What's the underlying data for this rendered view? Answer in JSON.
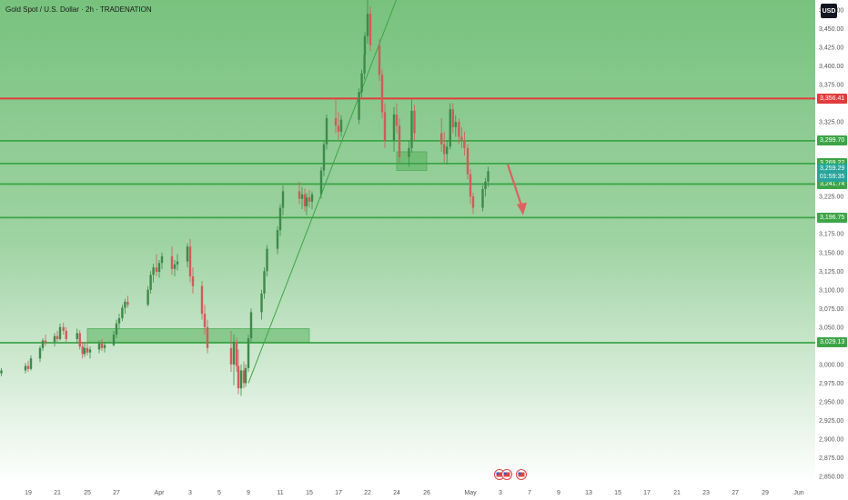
{
  "header": {
    "title": "Gold Spot / U.S. Dollar · 2h · TRADENATION",
    "currency": "USD"
  },
  "colors": {
    "background_top": "#78c27e",
    "background_bottom": "#ffffff",
    "resistance": "#e23b3b",
    "support": "#3da547",
    "candle_up": "#3d8a4a",
    "candle_down": "#d35a5a",
    "current_tag": "#26a69a",
    "arrow": "#e06060"
  },
  "chart_data": {
    "type": "candlestick",
    "symbol": "Gold Spot / U.S. Dollar",
    "interval": "2h",
    "broker": "TRADENATION",
    "ylim": [
      2850,
      3475
    ],
    "x_ticks": [
      "19",
      "21",
      "25",
      "27",
      "Apr",
      "3",
      "5",
      "9",
      "11",
      "15",
      "17",
      "22",
      "24",
      "26",
      "May",
      "3",
      "7",
      "9",
      "13",
      "15",
      "17",
      "21",
      "23",
      "27",
      "29",
      "Jun"
    ],
    "y_ticks": [
      "3,475.00",
      "3,450.00",
      "3,425.00",
      "3,400.00",
      "3,375.00",
      "3,325.00",
      "3,225.00",
      "3,175.00",
      "3,150.00",
      "3,125.00",
      "3,100.00",
      "3,075.00",
      "3,050.00",
      "3,000.00",
      "2,975.00",
      "2,950.00",
      "2,925.00",
      "2,900.00",
      "2,875.00",
      "2,850.00"
    ],
    "y_tick_values": [
      3475,
      3450,
      3425,
      3400,
      3375,
      3325,
      3225,
      3175,
      3150,
      3125,
      3100,
      3075,
      3050,
      3000,
      2975,
      2950,
      2925,
      2900,
      2875,
      2850
    ],
    "horizontal_levels": [
      {
        "label": "3,356.41",
        "value": 3356.41,
        "color": "#e23b3b",
        "kind": "resistance"
      },
      {
        "label": "3,299.70",
        "value": 3299.7,
        "color": "#3da547",
        "kind": "support"
      },
      {
        "label": "3,269.22",
        "value": 3269.22,
        "color": "#3da547",
        "kind": "support"
      },
      {
        "label": "3,241.74",
        "value": 3241.74,
        "color": "#3da547",
        "kind": "support"
      },
      {
        "label": "3,196.75",
        "value": 3196.75,
        "color": "#3da547",
        "kind": "support"
      },
      {
        "label": "3,029.13",
        "value": 3029.13,
        "color": "#3da547",
        "kind": "support"
      }
    ],
    "current_price": {
      "price": "3,259.29",
      "countdown": "01:59:35",
      "value": 3259.29
    },
    "zones": [
      {
        "date_from": "Mar 25",
        "date_to": "Apr 15",
        "low": 3030,
        "high": 3048
      },
      {
        "date_from": "Apr 24",
        "date_to": "Apr 26",
        "low": 3260,
        "high": 3285
      }
    ],
    "trendline": {
      "from_date": "Apr 9",
      "from_price": 2975,
      "to_date": "Apr 24",
      "to_price": 3490
    },
    "projection_arrow": {
      "from_date": "May 4",
      "from_price": 3268,
      "to_date": "May 6",
      "to_price": 3200
    },
    "events": [
      "us-flag",
      "us-flag",
      "us-flag"
    ],
    "candles": [
      {
        "date": "Mar 18",
        "o": 2985,
        "h": 2990,
        "l": 2980,
        "c": 2988
      },
      {
        "date": "Mar 18",
        "o": 2988,
        "h": 2995,
        "l": 2984,
        "c": 2992
      },
      {
        "date": "Mar 19",
        "o": 2992,
        "h": 3002,
        "l": 2988,
        "c": 2998
      },
      {
        "date": "Mar 19",
        "o": 2998,
        "h": 3005,
        "l": 2990,
        "c": 2994
      },
      {
        "date": "Mar 19",
        "o": 2994,
        "h": 3012,
        "l": 2992,
        "c": 3008
      },
      {
        "date": "Mar 20",
        "o": 3008,
        "h": 3025,
        "l": 3003,
        "c": 3022
      },
      {
        "date": "Mar 20",
        "o": 3022,
        "h": 3035,
        "l": 3018,
        "c": 3032
      },
      {
        "date": "Mar 20",
        "o": 3032,
        "h": 3040,
        "l": 3025,
        "c": 3030
      },
      {
        "date": "Mar 21",
        "o": 3030,
        "h": 3042,
        "l": 3024,
        "c": 3038
      },
      {
        "date": "Mar 21",
        "o": 3038,
        "h": 3045,
        "l": 3030,
        "c": 3034
      },
      {
        "date": "Mar 21",
        "o": 3034,
        "h": 3055,
        "l": 3032,
        "c": 3050
      },
      {
        "date": "Mar 22",
        "o": 3050,
        "h": 3056,
        "l": 3040,
        "c": 3045
      },
      {
        "date": "Mar 22",
        "o": 3045,
        "h": 3050,
        "l": 3030,
        "c": 3034
      },
      {
        "date": "Mar 24",
        "o": 3034,
        "h": 3048,
        "l": 3028,
        "c": 3042
      },
      {
        "date": "Mar 24",
        "o": 3042,
        "h": 3046,
        "l": 3020,
        "c": 3024
      },
      {
        "date": "Mar 24",
        "o": 3024,
        "h": 3030,
        "l": 3008,
        "c": 3014
      },
      {
        "date": "Mar 25",
        "o": 3014,
        "h": 3028,
        "l": 3010,
        "c": 3022
      },
      {
        "date": "Mar 25",
        "o": 3022,
        "h": 3030,
        "l": 3012,
        "c": 3016
      },
      {
        "date": "Mar 25",
        "o": 3016,
        "h": 3024,
        "l": 3008,
        "c": 3020
      },
      {
        "date": "Mar 26",
        "o": 3020,
        "h": 3032,
        "l": 3015,
        "c": 3028
      },
      {
        "date": "Mar 26",
        "o": 3028,
        "h": 3034,
        "l": 3018,
        "c": 3022
      },
      {
        "date": "Mar 26",
        "o": 3022,
        "h": 3030,
        "l": 3016,
        "c": 3026
      },
      {
        "date": "Mar 27",
        "o": 3026,
        "h": 3045,
        "l": 3024,
        "c": 3040
      },
      {
        "date": "Mar 27",
        "o": 3040,
        "h": 3060,
        "l": 3035,
        "c": 3055
      },
      {
        "date": "Mar 27",
        "o": 3055,
        "h": 3068,
        "l": 3048,
        "c": 3062
      },
      {
        "date": "Mar 28",
        "o": 3062,
        "h": 3080,
        "l": 3058,
        "c": 3076
      },
      {
        "date": "Mar 28",
        "o": 3076,
        "h": 3088,
        "l": 3068,
        "c": 3084
      },
      {
        "date": "Mar 28",
        "o": 3084,
        "h": 3092,
        "l": 3076,
        "c": 3080
      },
      {
        "date": "Mar 31",
        "o": 3080,
        "h": 3105,
        "l": 3078,
        "c": 3100
      },
      {
        "date": "Mar 31",
        "o": 3100,
        "h": 3125,
        "l": 3095,
        "c": 3120
      },
      {
        "date": "Mar 31",
        "o": 3120,
        "h": 3135,
        "l": 3110,
        "c": 3130
      },
      {
        "date": "Apr 1",
        "o": 3130,
        "h": 3148,
        "l": 3118,
        "c": 3124
      },
      {
        "date": "Apr 1",
        "o": 3124,
        "h": 3140,
        "l": 3116,
        "c": 3136
      },
      {
        "date": "Apr 1",
        "o": 3136,
        "h": 3150,
        "l": 3128,
        "c": 3145
      },
      {
        "date": "Apr 2",
        "o": 3145,
        "h": 3158,
        "l": 3120,
        "c": 3128
      },
      {
        "date": "Apr 2",
        "o": 3128,
        "h": 3140,
        "l": 3118,
        "c": 3134
      },
      {
        "date": "Apr 2",
        "o": 3134,
        "h": 3148,
        "l": 3126,
        "c": 3138
      },
      {
        "date": "Apr 3",
        "o": 3138,
        "h": 3162,
        "l": 3130,
        "c": 3158
      },
      {
        "date": "Apr 3",
        "o": 3158,
        "h": 3168,
        "l": 3110,
        "c": 3118
      },
      {
        "date": "Apr 3",
        "o": 3118,
        "h": 3130,
        "l": 3095,
        "c": 3105
      },
      {
        "date": "Apr 4",
        "o": 3105,
        "h": 3112,
        "l": 3060,
        "c": 3068
      },
      {
        "date": "Apr 4",
        "o": 3068,
        "h": 3080,
        "l": 3040,
        "c": 3050
      },
      {
        "date": "Apr 4",
        "o": 3050,
        "h": 3060,
        "l": 3015,
        "c": 3022
      },
      {
        "date": "Apr 7",
        "o": 3022,
        "h": 3045,
        "l": 2990,
        "c": 3000
      },
      {
        "date": "Apr 7",
        "o": 3000,
        "h": 3040,
        "l": 2972,
        "c": 3030
      },
      {
        "date": "Apr 7",
        "o": 3030,
        "h": 3036,
        "l": 2990,
        "c": 2998
      },
      {
        "date": "Apr 8",
        "o": 2998,
        "h": 3020,
        "l": 2960,
        "c": 2968
      },
      {
        "date": "Apr 8",
        "o": 2968,
        "h": 3000,
        "l": 2958,
        "c": 2992
      },
      {
        "date": "Apr 8",
        "o": 2992,
        "h": 3004,
        "l": 2968,
        "c": 2975
      },
      {
        "date": "Apr 9",
        "o": 2975,
        "h": 3000,
        "l": 2970,
        "c": 2995
      },
      {
        "date": "Apr 9",
        "o": 2995,
        "h": 3040,
        "l": 2990,
        "c": 3035
      },
      {
        "date": "Apr 9",
        "o": 3035,
        "h": 3075,
        "l": 3030,
        "c": 3070
      },
      {
        "date": "Apr 10",
        "o": 3070,
        "h": 3100,
        "l": 3060,
        "c": 3095
      },
      {
        "date": "Apr 10",
        "o": 3095,
        "h": 3130,
        "l": 3088,
        "c": 3125
      },
      {
        "date": "Apr 10",
        "o": 3125,
        "h": 3160,
        "l": 3118,
        "c": 3155
      },
      {
        "date": "Apr 11",
        "o": 3155,
        "h": 3185,
        "l": 3148,
        "c": 3180
      },
      {
        "date": "Apr 11",
        "o": 3180,
        "h": 3215,
        "l": 3172,
        "c": 3210
      },
      {
        "date": "Apr 11",
        "o": 3210,
        "h": 3240,
        "l": 3200,
        "c": 3232
      },
      {
        "date": "Apr 14",
        "o": 3232,
        "h": 3245,
        "l": 3215,
        "c": 3222
      },
      {
        "date": "Apr 14",
        "o": 3222,
        "h": 3238,
        "l": 3208,
        "c": 3228
      },
      {
        "date": "Apr 14",
        "o": 3228,
        "h": 3236,
        "l": 3205,
        "c": 3212
      },
      {
        "date": "Apr 15",
        "o": 3212,
        "h": 3230,
        "l": 3200,
        "c": 3224
      },
      {
        "date": "Apr 15",
        "o": 3224,
        "h": 3234,
        "l": 3210,
        "c": 3218
      },
      {
        "date": "Apr 15",
        "o": 3218,
        "h": 3232,
        "l": 3208,
        "c": 3228
      },
      {
        "date": "Apr 16",
        "o": 3228,
        "h": 3265,
        "l": 3222,
        "c": 3260
      },
      {
        "date": "Apr 16",
        "o": 3260,
        "h": 3300,
        "l": 3252,
        "c": 3295
      },
      {
        "date": "Apr 16",
        "o": 3295,
        "h": 3335,
        "l": 3288,
        "c": 3330
      },
      {
        "date": "Apr 17",
        "o": 3330,
        "h": 3356,
        "l": 3310,
        "c": 3320
      },
      {
        "date": "Apr 17",
        "o": 3320,
        "h": 3338,
        "l": 3300,
        "c": 3312
      },
      {
        "date": "Apr 17",
        "o": 3312,
        "h": 3334,
        "l": 3305,
        "c": 3328
      },
      {
        "date": "Apr 21",
        "o": 3328,
        "h": 3370,
        "l": 3322,
        "c": 3365
      },
      {
        "date": "Apr 21",
        "o": 3365,
        "h": 3395,
        "l": 3358,
        "c": 3390
      },
      {
        "date": "Apr 21",
        "o": 3390,
        "h": 3420,
        "l": 3382,
        "c": 3415
      },
      {
        "date": "Apr 22",
        "o": 3415,
        "h": 3445,
        "l": 3405,
        "c": 3440
      },
      {
        "date": "Apr 22",
        "o": 3440,
        "h": 3500,
        "l": 3430,
        "c": 3470
      },
      {
        "date": "Apr 22",
        "o": 3470,
        "h": 3480,
        "l": 3420,
        "c": 3428
      },
      {
        "date": "Apr 23",
        "o": 3428,
        "h": 3436,
        "l": 3380,
        "c": 3388
      },
      {
        "date": "Apr 23",
        "o": 3388,
        "h": 3395,
        "l": 3330,
        "c": 3338
      },
      {
        "date": "Apr 23",
        "o": 3338,
        "h": 3350,
        "l": 3290,
        "c": 3300
      },
      {
        "date": "Apr 24",
        "o": 3300,
        "h": 3345,
        "l": 3285,
        "c": 3335
      },
      {
        "date": "Apr 24",
        "o": 3335,
        "h": 3350,
        "l": 3310,
        "c": 3320
      },
      {
        "date": "Apr 24",
        "o": 3320,
        "h": 3330,
        "l": 3270,
        "c": 3278
      },
      {
        "date": "Apr 25",
        "o": 3278,
        "h": 3300,
        "l": 3265,
        "c": 3290
      },
      {
        "date": "Apr 25",
        "o": 3290,
        "h": 3355,
        "l": 3284,
        "c": 3340
      },
      {
        "date": "Apr 25",
        "o": 3340,
        "h": 3348,
        "l": 3300,
        "c": 3310
      },
      {
        "date": "Apr 28",
        "o": 3310,
        "h": 3330,
        "l": 3285,
        "c": 3295
      },
      {
        "date": "Apr 28",
        "o": 3295,
        "h": 3312,
        "l": 3270,
        "c": 3282
      },
      {
        "date": "Apr 28",
        "o": 3282,
        "h": 3300,
        "l": 3268,
        "c": 3292
      },
      {
        "date": "Apr 29",
        "o": 3292,
        "h": 3350,
        "l": 3288,
        "c": 3342
      },
      {
        "date": "Apr 29",
        "o": 3342,
        "h": 3350,
        "l": 3310,
        "c": 3318
      },
      {
        "date": "Apr 29",
        "o": 3318,
        "h": 3334,
        "l": 3305,
        "c": 3325
      },
      {
        "date": "Apr 30",
        "o": 3325,
        "h": 3330,
        "l": 3295,
        "c": 3305
      },
      {
        "date": "Apr 30",
        "o": 3305,
        "h": 3318,
        "l": 3290,
        "c": 3300
      },
      {
        "date": "Apr 30",
        "o": 3300,
        "h": 3312,
        "l": 3280,
        "c": 3290
      },
      {
        "date": "May 1",
        "o": 3290,
        "h": 3295,
        "l": 3248,
        "c": 3255
      },
      {
        "date": "May 1",
        "o": 3255,
        "h": 3262,
        "l": 3215,
        "c": 3225
      },
      {
        "date": "May 1",
        "o": 3225,
        "h": 3230,
        "l": 3202,
        "c": 3210
      },
      {
        "date": "May 2",
        "o": 3210,
        "h": 3240,
        "l": 3205,
        "c": 3235
      },
      {
        "date": "May 2",
        "o": 3235,
        "h": 3250,
        "l": 3225,
        "c": 3245
      },
      {
        "date": "May 2",
        "o": 3245,
        "h": 3265,
        "l": 3238,
        "c": 3259
      }
    ]
  }
}
